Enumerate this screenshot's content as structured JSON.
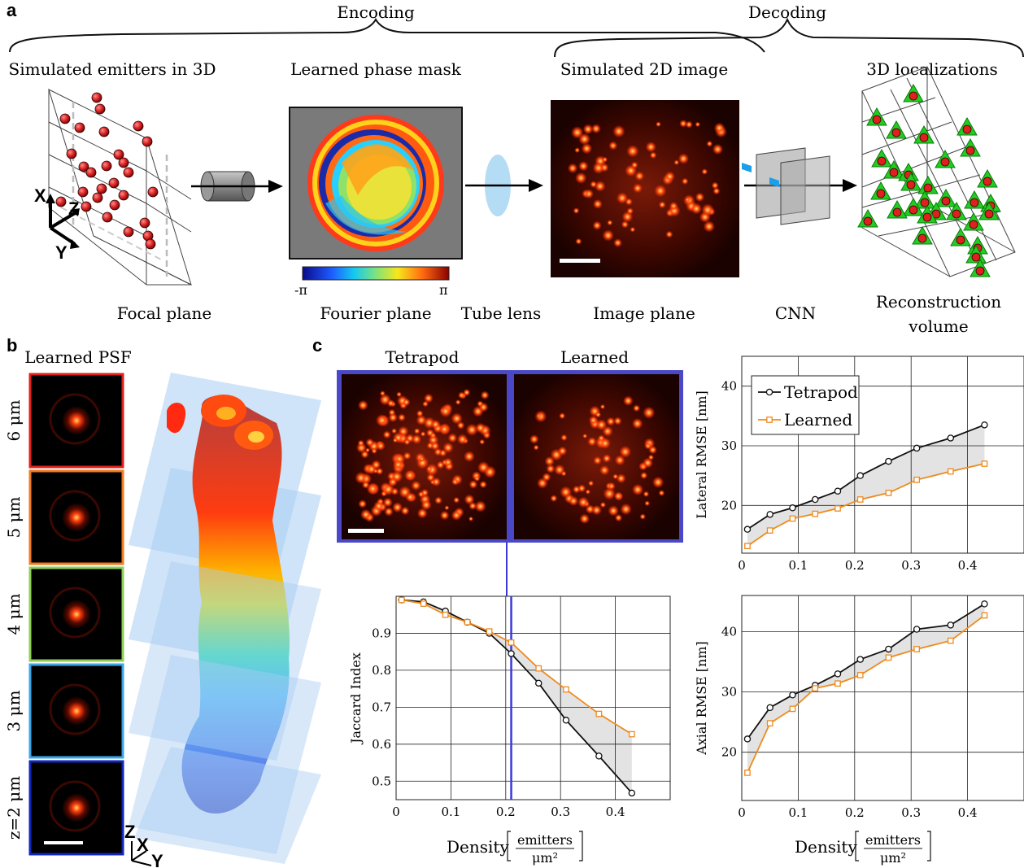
{
  "panel_a": {
    "label": "a",
    "encoding": "Encoding",
    "decoding": "Decoding",
    "titles": {
      "emitters": "Simulated emitters in 3D",
      "mask": "Learned phase mask",
      "image": "Simulated 2D image",
      "loc": "3D localizations"
    },
    "bottom": {
      "focal": "Focal plane",
      "fourier": "Fourier plane",
      "tube": "Tube lens",
      "imgplane": "Image plane",
      "cnn": "CNN",
      "recon1": "Reconstruction",
      "recon2": "volume"
    },
    "axes": {
      "x": "X",
      "y": "Y",
      "z": "Z"
    },
    "colorbar": {
      "min": "-π",
      "max": "π"
    }
  },
  "panel_b": {
    "label": "b",
    "title": "Learned PSF",
    "psfs": [
      {
        "label": "6 μm",
        "color": "#e0201c"
      },
      {
        "label": "5 μm",
        "color": "#f07a20"
      },
      {
        "label": "4 μm",
        "color": "#8ecf55"
      },
      {
        "label": "3 μm",
        "color": "#3aa4e6"
      },
      {
        "label": "z=2 μm",
        "color": "#1226b8"
      }
    ],
    "axes": {
      "x": "X",
      "y": "Y",
      "z": "Z"
    }
  },
  "panel_c": {
    "label": "c",
    "img_left": "Tetrapod",
    "img_right": "Learned",
    "density_label": "Density",
    "density_num": "emitters",
    "density_den": "μm²"
  },
  "chart_data": [
    {
      "type": "line",
      "ylabel": "Jaccard Index",
      "xlabel": "Density [emitters/μm²]",
      "xlim": [
        0,
        0.5
      ],
      "ylim": [
        0.45,
        1.0
      ],
      "xticks": [
        "0",
        "0.1",
        "0.2",
        "0.3",
        "0.4"
      ],
      "yticks": [
        "0.5",
        "0.6",
        "0.7",
        "0.8",
        "0.9"
      ],
      "grid": true,
      "x": [
        0.01,
        0.05,
        0.09,
        0.13,
        0.17,
        0.21,
        0.26,
        0.31,
        0.37,
        0.43
      ],
      "series": [
        {
          "name": "Tetrapod",
          "color": "#111111",
          "marker": "circle",
          "values": [
            0.99,
            0.985,
            0.96,
            0.93,
            0.9,
            0.845,
            0.765,
            0.665,
            0.568,
            0.468
          ]
        },
        {
          "name": "Learned",
          "color": "#ee8a1e",
          "marker": "square",
          "values": [
            0.99,
            0.98,
            0.95,
            0.93,
            0.905,
            0.875,
            0.805,
            0.748,
            0.682,
            0.627
          ]
        }
      ],
      "vline": 0.21
    },
    {
      "type": "line",
      "ylabel": "Lateral RMSE [nm]",
      "xlim": [
        0,
        0.5
      ],
      "ylim": [
        12,
        45
      ],
      "xticks": [
        "0",
        "0.1",
        "0.2",
        "0.3",
        "0.4"
      ],
      "yticks": [
        "20",
        "30",
        "40"
      ],
      "grid": true,
      "legend": "top-left",
      "x": [
        0.01,
        0.05,
        0.09,
        0.13,
        0.17,
        0.21,
        0.26,
        0.31,
        0.37,
        0.43
      ],
      "series": [
        {
          "name": "Tetrapod",
          "color": "#111111",
          "marker": "circle",
          "values": [
            16,
            18.5,
            19.6,
            21,
            22.4,
            25,
            27.4,
            29.6,
            31.3,
            33.5
          ]
        },
        {
          "name": "Learned",
          "color": "#ee8a1e",
          "marker": "square",
          "values": [
            13.2,
            15.8,
            17.8,
            18.6,
            19.5,
            21,
            22.1,
            24.3,
            25.7,
            27
          ]
        }
      ]
    },
    {
      "type": "line",
      "ylabel": "Axial RMSE [nm]",
      "xlim": [
        0,
        0.5
      ],
      "ylim": [
        12,
        46
      ],
      "xticks": [
        "0",
        "0.1",
        "0.2",
        "0.3",
        "0.4"
      ],
      "yticks": [
        "20",
        "30",
        "40"
      ],
      "grid": true,
      "x": [
        0.01,
        0.05,
        0.09,
        0.13,
        0.17,
        0.21,
        0.26,
        0.31,
        0.37,
        0.43
      ],
      "series": [
        {
          "name": "Tetrapod",
          "color": "#111111",
          "marker": "circle",
          "values": [
            22.2,
            27.4,
            29.5,
            31.1,
            33,
            35.4,
            37.1,
            40.4,
            41.1,
            44.6
          ]
        },
        {
          "name": "Learned",
          "color": "#ee8a1e",
          "marker": "square",
          "values": [
            16.6,
            24.8,
            27.2,
            30.6,
            31.4,
            32.8,
            35.7,
            37.1,
            38.5,
            42.7
          ]
        }
      ]
    }
  ]
}
